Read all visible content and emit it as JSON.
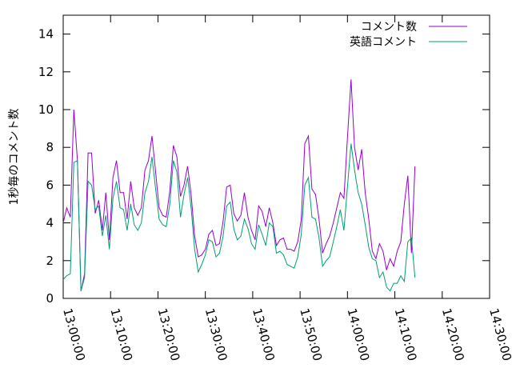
{
  "chart_data": {
    "type": "line",
    "title": "",
    "xlabel": "",
    "ylabel": "1秒毎のコメント数",
    "xlim": [
      "13:00:00",
      "14:30:00"
    ],
    "ylim": [
      0,
      15
    ],
    "x_ticks": [
      "13:00:00",
      "13:10:00",
      "13:20:00",
      "13:30:00",
      "13:40:00",
      "13:50:00",
      "14:00:00",
      "14:10:00",
      "14:20:00",
      "14:30:00"
    ],
    "y_ticks": [
      "0",
      "2",
      "4",
      "6",
      "8",
      "10",
      "12",
      "14"
    ],
    "grid": false,
    "legend_position": "top-right",
    "series": [
      {
        "name": "コメント数",
        "color": "#9400d3",
        "points": [
          [
            "13:00:00",
            4.0
          ],
          [
            "13:00:45",
            4.8
          ],
          [
            "13:01:30",
            4.3
          ],
          [
            "13:02:15",
            10.0
          ],
          [
            "13:03:00",
            7.3
          ],
          [
            "13:03:45",
            0.4
          ],
          [
            "13:04:30",
            1.3
          ],
          [
            "13:05:15",
            7.7
          ],
          [
            "13:06:00",
            7.7
          ],
          [
            "13:06:45",
            4.5
          ],
          [
            "13:07:30",
            5.2
          ],
          [
            "13:08:15",
            3.6
          ],
          [
            "13:09:00",
            5.6
          ],
          [
            "13:09:45",
            3.1
          ],
          [
            "13:10:30",
            6.4
          ],
          [
            "13:11:15",
            7.3
          ],
          [
            "13:12:00",
            5.6
          ],
          [
            "13:12:45",
            5.6
          ],
          [
            "13:13:30",
            4.2
          ],
          [
            "13:14:15",
            6.2
          ],
          [
            "13:15:00",
            4.8
          ],
          [
            "13:15:45",
            4.4
          ],
          [
            "13:16:30",
            4.8
          ],
          [
            "13:17:15",
            6.8
          ],
          [
            "13:18:00",
            7.3
          ],
          [
            "13:18:45",
            8.6
          ],
          [
            "13:19:30",
            6.7
          ],
          [
            "13:20:15",
            4.8
          ],
          [
            "13:21:00",
            4.4
          ],
          [
            "13:21:45",
            4.3
          ],
          [
            "13:22:30",
            5.7
          ],
          [
            "13:23:15",
            8.1
          ],
          [
            "13:24:00",
            7.5
          ],
          [
            "13:24:45",
            5.4
          ],
          [
            "13:25:30",
            6.0
          ],
          [
            "13:26:15",
            7.0
          ],
          [
            "13:27:00",
            5.5
          ],
          [
            "13:27:45",
            3.3
          ],
          [
            "13:28:30",
            2.2
          ],
          [
            "13:29:15",
            2.3
          ],
          [
            "13:30:00",
            2.6
          ],
          [
            "13:30:45",
            3.4
          ],
          [
            "13:31:30",
            3.6
          ],
          [
            "13:32:15",
            2.8
          ],
          [
            "13:33:00",
            2.9
          ],
          [
            "13:33:45",
            4.1
          ],
          [
            "13:34:30",
            5.9
          ],
          [
            "13:35:15",
            6.0
          ],
          [
            "13:36:00",
            4.5
          ],
          [
            "13:36:45",
            4.1
          ],
          [
            "13:37:30",
            4.4
          ],
          [
            "13:38:15",
            5.6
          ],
          [
            "13:39:00",
            4.3
          ],
          [
            "13:39:45",
            3.6
          ],
          [
            "13:40:30",
            3.1
          ],
          [
            "13:41:15",
            4.9
          ],
          [
            "13:42:00",
            4.6
          ],
          [
            "13:42:45",
            3.8
          ],
          [
            "13:43:30",
            4.8
          ],
          [
            "13:44:15",
            4.0
          ],
          [
            "13:45:00",
            2.8
          ],
          [
            "13:45:45",
            3.1
          ],
          [
            "13:46:30",
            3.2
          ],
          [
            "13:47:15",
            2.6
          ],
          [
            "13:48:00",
            2.6
          ],
          [
            "13:48:45",
            2.5
          ],
          [
            "13:49:30",
            3.0
          ],
          [
            "13:50:15",
            4.2
          ],
          [
            "13:51:00",
            8.2
          ],
          [
            "13:51:45",
            8.6
          ],
          [
            "13:52:30",
            5.8
          ],
          [
            "13:53:15",
            5.5
          ],
          [
            "13:54:00",
            4.2
          ],
          [
            "13:54:45",
            2.4
          ],
          [
            "13:55:30",
            2.9
          ],
          [
            "13:56:15",
            3.3
          ],
          [
            "13:57:00",
            4.0
          ],
          [
            "13:57:45",
            4.8
          ],
          [
            "13:58:30",
            5.6
          ],
          [
            "13:59:15",
            5.3
          ],
          [
            "14:00:00",
            8.5
          ],
          [
            "14:00:45",
            11.6
          ],
          [
            "14:01:30",
            8.0
          ],
          [
            "14:02:15",
            6.8
          ],
          [
            "14:03:00",
            7.9
          ],
          [
            "14:03:45",
            5.6
          ],
          [
            "14:04:30",
            4.2
          ],
          [
            "14:05:15",
            2.5
          ],
          [
            "14:06:00",
            2.1
          ],
          [
            "14:06:45",
            2.9
          ],
          [
            "14:07:30",
            2.5
          ],
          [
            "14:08:15",
            1.5
          ],
          [
            "14:09:00",
            2.1
          ],
          [
            "14:09:45",
            1.7
          ],
          [
            "14:10:30",
            2.5
          ],
          [
            "14:11:15",
            3.0
          ],
          [
            "14:12:00",
            5.0
          ],
          [
            "14:12:45",
            6.5
          ],
          [
            "14:13:30",
            2.4
          ],
          [
            "14:14:15",
            7.0
          ]
        ]
      },
      {
        "name": "英語コメント",
        "color": "#009e73",
        "points": [
          [
            "13:00:00",
            1.0
          ],
          [
            "13:00:45",
            1.2
          ],
          [
            "13:01:30",
            1.3
          ],
          [
            "13:02:15",
            7.2
          ],
          [
            "13:03:00",
            7.3
          ],
          [
            "13:03:45",
            0.4
          ],
          [
            "13:04:30",
            1.1
          ],
          [
            "13:05:15",
            6.2
          ],
          [
            "13:06:00",
            6.0
          ],
          [
            "13:06:45",
            4.7
          ],
          [
            "13:07:30",
            4.9
          ],
          [
            "13:08:15",
            3.3
          ],
          [
            "13:09:00",
            4.4
          ],
          [
            "13:09:45",
            2.6
          ],
          [
            "13:10:30",
            5.3
          ],
          [
            "13:11:15",
            6.2
          ],
          [
            "13:12:00",
            4.8
          ],
          [
            "13:12:45",
            4.7
          ],
          [
            "13:13:30",
            3.6
          ],
          [
            "13:14:15",
            5.0
          ],
          [
            "13:15:00",
            3.9
          ],
          [
            "13:15:45",
            3.6
          ],
          [
            "13:16:30",
            4.0
          ],
          [
            "13:17:15",
            5.6
          ],
          [
            "13:18:00",
            6.2
          ],
          [
            "13:18:45",
            7.5
          ],
          [
            "13:19:30",
            5.8
          ],
          [
            "13:20:15",
            4.2
          ],
          [
            "13:21:00",
            3.9
          ],
          [
            "13:21:45",
            3.8
          ],
          [
            "13:22:30",
            5.0
          ],
          [
            "13:23:15",
            7.3
          ],
          [
            "13:24:00",
            6.7
          ],
          [
            "13:24:45",
            4.3
          ],
          [
            "13:25:30",
            5.5
          ],
          [
            "13:26:15",
            6.4
          ],
          [
            "13:27:00",
            4.8
          ],
          [
            "13:27:45",
            2.6
          ],
          [
            "13:28:30",
            1.4
          ],
          [
            "13:29:15",
            1.8
          ],
          [
            "13:30:00",
            2.3
          ],
          [
            "13:30:45",
            3.1
          ],
          [
            "13:31:30",
            3.0
          ],
          [
            "13:32:15",
            2.2
          ],
          [
            "13:33:00",
            2.4
          ],
          [
            "13:33:45",
            3.3
          ],
          [
            "13:34:30",
            4.9
          ],
          [
            "13:35:15",
            5.1
          ],
          [
            "13:36:00",
            3.7
          ],
          [
            "13:36:45",
            3.1
          ],
          [
            "13:37:30",
            3.3
          ],
          [
            "13:38:15",
            4.2
          ],
          [
            "13:39:00",
            3.7
          ],
          [
            "13:39:45",
            2.9
          ],
          [
            "13:40:30",
            2.6
          ],
          [
            "13:41:15",
            3.9
          ],
          [
            "13:42:00",
            3.4
          ],
          [
            "13:42:45",
            2.8
          ],
          [
            "13:43:30",
            4.0
          ],
          [
            "13:44:15",
            3.8
          ],
          [
            "13:45:00",
            2.4
          ],
          [
            "13:45:45",
            2.5
          ],
          [
            "13:46:30",
            2.3
          ],
          [
            "13:47:15",
            1.8
          ],
          [
            "13:48:00",
            1.7
          ],
          [
            "13:48:45",
            1.6
          ],
          [
            "13:49:30",
            2.2
          ],
          [
            "13:50:15",
            3.4
          ],
          [
            "13:51:00",
            6.0
          ],
          [
            "13:51:45",
            6.4
          ],
          [
            "13:52:30",
            4.3
          ],
          [
            "13:53:15",
            4.2
          ],
          [
            "13:54:00",
            3.2
          ],
          [
            "13:54:45",
            1.7
          ],
          [
            "13:55:30",
            2.0
          ],
          [
            "13:56:15",
            2.2
          ],
          [
            "13:57:00",
            3.0
          ],
          [
            "13:57:45",
            3.8
          ],
          [
            "13:58:30",
            4.7
          ],
          [
            "13:59:15",
            3.6
          ],
          [
            "14:00:00",
            5.9
          ],
          [
            "14:00:45",
            8.2
          ],
          [
            "14:01:30",
            6.8
          ],
          [
            "14:02:15",
            5.6
          ],
          [
            "14:03:00",
            5.0
          ],
          [
            "14:03:45",
            3.9
          ],
          [
            "14:04:30",
            2.7
          ],
          [
            "14:05:15",
            2.1
          ],
          [
            "14:06:00",
            2.0
          ],
          [
            "14:06:45",
            1.1
          ],
          [
            "14:07:30",
            1.4
          ],
          [
            "14:08:15",
            0.6
          ],
          [
            "14:09:00",
            0.4
          ],
          [
            "14:09:45",
            0.8
          ],
          [
            "14:10:30",
            0.8
          ],
          [
            "14:11:15",
            1.2
          ],
          [
            "14:12:00",
            0.9
          ],
          [
            "14:12:45",
            3.0
          ],
          [
            "14:13:30",
            3.2
          ],
          [
            "14:14:15",
            1.1
          ]
        ]
      }
    ]
  }
}
